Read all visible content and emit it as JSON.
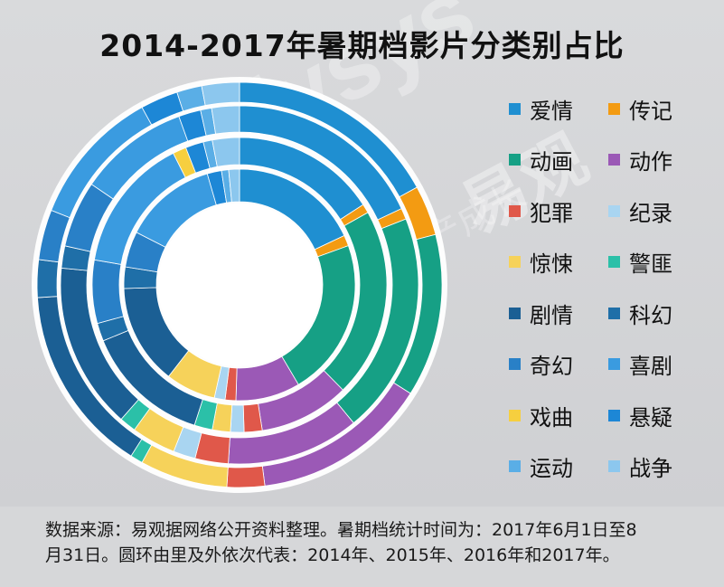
{
  "title": "2014-2017年暑期档影片分类别占比",
  "watermark": {
    "brand": "Analysys",
    "cn": "易观",
    "slogan": "实时分析驱动用户资产成长"
  },
  "footer": {
    "line1": "数据来源：易观据网络公开资料整理。暑期档统计时间为：2017年6月1日至8",
    "line2": "月31日。圆环由里及外依次代表：2014年、2015年、2016年和2017年。"
  },
  "legend_items": [
    {
      "label": "爱情",
      "color": "#1f8fd1"
    },
    {
      "label": "传记",
      "color": "#f39b12"
    },
    {
      "label": "动画",
      "color": "#16a085"
    },
    {
      "label": "动作",
      "color": "#9b59b6"
    },
    {
      "label": "犯罪",
      "color": "#e0584a"
    },
    {
      "label": "纪录",
      "color": "#a9d5f1"
    },
    {
      "label": "惊悚",
      "color": "#f6d25a"
    },
    {
      "label": "警匪",
      "color": "#2bc0a8"
    },
    {
      "label": "剧情",
      "color": "#1b5f94"
    },
    {
      "label": "科幻",
      "color": "#1f6fa8"
    },
    {
      "label": "奇幻",
      "color": "#2980c7"
    },
    {
      "label": "喜剧",
      "color": "#3a9be0"
    },
    {
      "label": "戏曲",
      "color": "#f6cf3f"
    },
    {
      "label": "悬疑",
      "color": "#1d87d6"
    },
    {
      "label": "运动",
      "color": "#5aaee6"
    },
    {
      "label": "战争",
      "color": "#8cc7ee"
    }
  ],
  "chart_data": {
    "type": "pie",
    "subtype": "stacked-ring",
    "title": "2014-2017年暑期档影片分类别占比",
    "unit": "%",
    "categories": [
      "爱情",
      "传记",
      "动画",
      "动作",
      "犯罪",
      "纪录",
      "惊悚",
      "警匪",
      "剧情",
      "科幻",
      "奇幻",
      "喜剧",
      "戏曲",
      "悬疑",
      "运动",
      "战争"
    ],
    "series": [
      {
        "name": "2014年",
        "values": [
          18,
          1.5,
          22,
          9,
          1.5,
          1.5,
          7,
          0,
          14,
          3,
          5,
          13,
          0,
          2,
          1,
          1.5
        ]
      },
      {
        "name": "2015年",
        "values": [
          16,
          1,
          21,
          10,
          2,
          1.5,
          2,
          2,
          14,
          2,
          7,
          15,
          1.5,
          2,
          1,
          3
        ]
      },
      {
        "name": "2016年",
        "values": [
          18,
          1,
          20,
          12,
          3,
          2,
          4,
          1.5,
          15,
          2,
          6,
          10,
          0,
          2,
          1,
          2.5
        ]
      },
      {
        "name": "2017年",
        "values": [
          17,
          4,
          13,
          14,
          3,
          0,
          7,
          1,
          15,
          3,
          4,
          11,
          0,
          3,
          2,
          3
        ]
      }
    ]
  }
}
